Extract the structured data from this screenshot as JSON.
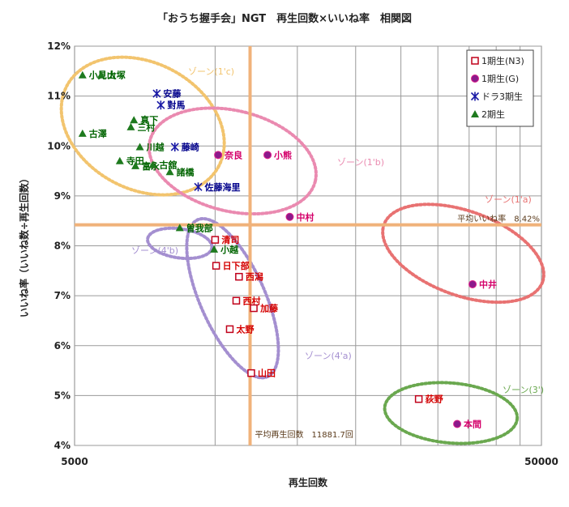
{
  "chart_data": {
    "type": "scatter",
    "title": "「おうち握手会」NGT　再生回数×いいね率　相関図",
    "xlabel": "再生回数",
    "ylabel": "いいね率（いいね数÷再生回数）",
    "x_scale": "log",
    "xlim": [
      5000,
      50000
    ],
    "ylim": [
      4,
      12
    ],
    "x_ticks": [
      {
        "value": 5000,
        "label": "5000"
      },
      {
        "value": 50000,
        "label": "50000"
      }
    ],
    "y_ticks": [
      {
        "value": 4,
        "label": "4%"
      },
      {
        "value": 5,
        "label": "5%"
      },
      {
        "value": 6,
        "label": "6%"
      },
      {
        "value": 7,
        "label": "7%"
      },
      {
        "value": 8,
        "label": "8%"
      },
      {
        "value": 9,
        "label": "9%"
      },
      {
        "value": 10,
        "label": "10%"
      },
      {
        "value": 11,
        "label": "11%"
      },
      {
        "value": 12,
        "label": "12%"
      }
    ],
    "averages": {
      "x": 11881.7,
      "x_label": "平均再生回数　11881.7回",
      "y": 8.42,
      "y_label": "平均いいね率　8.42%",
      "color": "#f0b27a"
    },
    "series": [
      {
        "name": "1期生(N3)",
        "marker": "square",
        "color": "#c0001a",
        "label_color": "#d40000",
        "points": [
          {
            "label": "清司",
            "x": 10000,
            "y": 8.12
          },
          {
            "label": "日下部",
            "x": 10050,
            "y": 7.6
          },
          {
            "label": "西潟",
            "x": 11250,
            "y": 7.38
          },
          {
            "label": "西村",
            "x": 11100,
            "y": 6.9
          },
          {
            "label": "加藤",
            "x": 12100,
            "y": 6.75
          },
          {
            "label": "太野",
            "x": 10750,
            "y": 6.33
          },
          {
            "label": "山田",
            "x": 11950,
            "y": 5.45
          },
          {
            "label": "荻野",
            "x": 27300,
            "y": 4.93
          }
        ]
      },
      {
        "name": "1期生(G)",
        "marker": "circle",
        "color": "#8b1a8b",
        "label_color": "#d4006a",
        "points": [
          {
            "label": "奈良",
            "x": 10150,
            "y": 9.82
          },
          {
            "label": "小熊",
            "x": 12950,
            "y": 9.82
          },
          {
            "label": "中村",
            "x": 14450,
            "y": 8.58
          },
          {
            "label": "中井",
            "x": 35600,
            "y": 7.23
          },
          {
            "label": "本間",
            "x": 33000,
            "y": 4.43
          }
        ]
      },
      {
        "name": "ドラ3期生",
        "marker": "asterisk",
        "color": "#1a1aa6",
        "label_color": "#00008b",
        "points": [
          {
            "label": "安藤",
            "x": 7500,
            "y": 11.05
          },
          {
            "label": "對馬",
            "x": 7650,
            "y": 10.82
          },
          {
            "label": "藤崎",
            "x": 8200,
            "y": 9.98
          },
          {
            "label": "佐藤海里",
            "x": 9200,
            "y": 9.18
          }
        ]
      },
      {
        "name": "2期生",
        "marker": "triangle",
        "color": "#1e7a1e",
        "label_color": "#006400",
        "points": [
          {
            "label": "小見山",
            "x": 5200,
            "y": 11.42
          },
          {
            "label": "大塚",
            "x": 5700,
            "y": 11.42
          },
          {
            "label": "真下",
            "x": 6700,
            "y": 10.52
          },
          {
            "label": "三村",
            "x": 6600,
            "y": 10.38
          },
          {
            "label": "古澤",
            "x": 5200,
            "y": 10.25
          },
          {
            "label": "川越",
            "x": 6900,
            "y": 9.98
          },
          {
            "label": "寺田",
            "x": 6250,
            "y": 9.7
          },
          {
            "label": "富永",
            "x": 6750,
            "y": 9.6
          },
          {
            "label": "古舘",
            "x": 7350,
            "y": 9.62
          },
          {
            "label": "諸橋",
            "x": 8000,
            "y": 9.48
          },
          {
            "label": "曽我部",
            "x": 8400,
            "y": 8.36
          },
          {
            "label": "小越",
            "x": 9950,
            "y": 7.93
          }
        ]
      }
    ],
    "zones": [
      {
        "label": "ゾーン(1'c)",
        "color": "#f2c46e"
      },
      {
        "label": "ゾーン(1'b)",
        "color": "#ea8ab0"
      },
      {
        "label": "ゾーン(1'a)",
        "color": "#e87272"
      },
      {
        "label": "ゾーン(4'b)",
        "color": "#a48fd0"
      },
      {
        "label": "ゾーン(4'a)",
        "color": "#a48fd0"
      },
      {
        "label": "ゾーン(3')",
        "color": "#6aa84f"
      }
    ],
    "legend_position": "top-right",
    "grid": true
  }
}
